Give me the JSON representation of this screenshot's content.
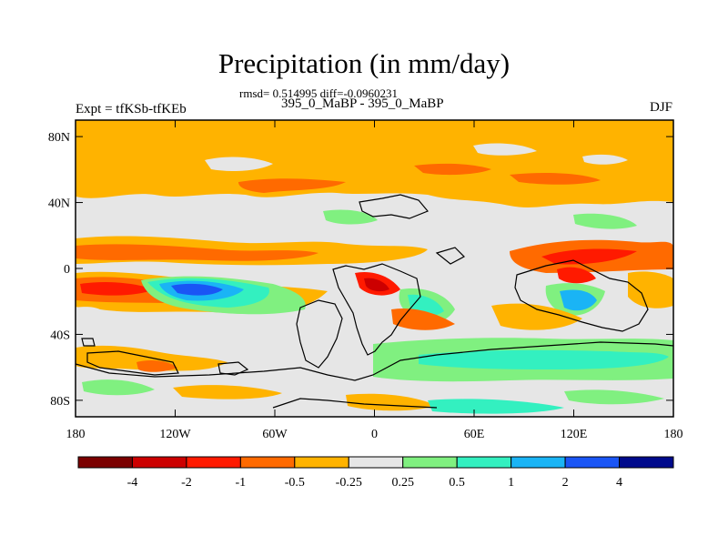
{
  "header": {
    "title": "Precipitation (in mm/day)",
    "stats": "rmsd= 0.514995 diff=-0.0960231",
    "runs": "395_0_MaBP - 395_0_MaBP",
    "expt": "Expt = tfKSb-tfKEb",
    "season": "DJF"
  },
  "map": {
    "lon_range": [
      -180,
      180
    ],
    "lat_range": [
      -90,
      90
    ],
    "x_ticks": [
      {
        "value": -180,
        "label": "180"
      },
      {
        "value": -120,
        "label": "120W"
      },
      {
        "value": -60,
        "label": "60W"
      },
      {
        "value": 0,
        "label": "0"
      },
      {
        "value": 60,
        "label": "60E"
      },
      {
        "value": 120,
        "label": "120E"
      },
      {
        "value": 180,
        "label": "180"
      }
    ],
    "y_ticks": [
      {
        "value": 80,
        "label": "80N"
      },
      {
        "value": 40,
        "label": "40N"
      },
      {
        "value": 0,
        "label": "0"
      },
      {
        "value": -40,
        "label": "40S"
      },
      {
        "value": -80,
        "label": "80S"
      }
    ],
    "background_color": "#e6e6e6"
  },
  "colorbar": {
    "colors": [
      "#7b0000",
      "#cc0000",
      "#ff1a00",
      "#ff6a00",
      "#ffb300",
      "#e6e6e6",
      "#80f080",
      "#33f0c0",
      "#1ab4f5",
      "#1a55f5",
      "#000a8c"
    ],
    "labels": [
      "-4",
      "-2",
      "-1",
      "-0.5",
      "-0.25",
      "0.25",
      "0.5",
      "1",
      "2",
      "4"
    ]
  }
}
